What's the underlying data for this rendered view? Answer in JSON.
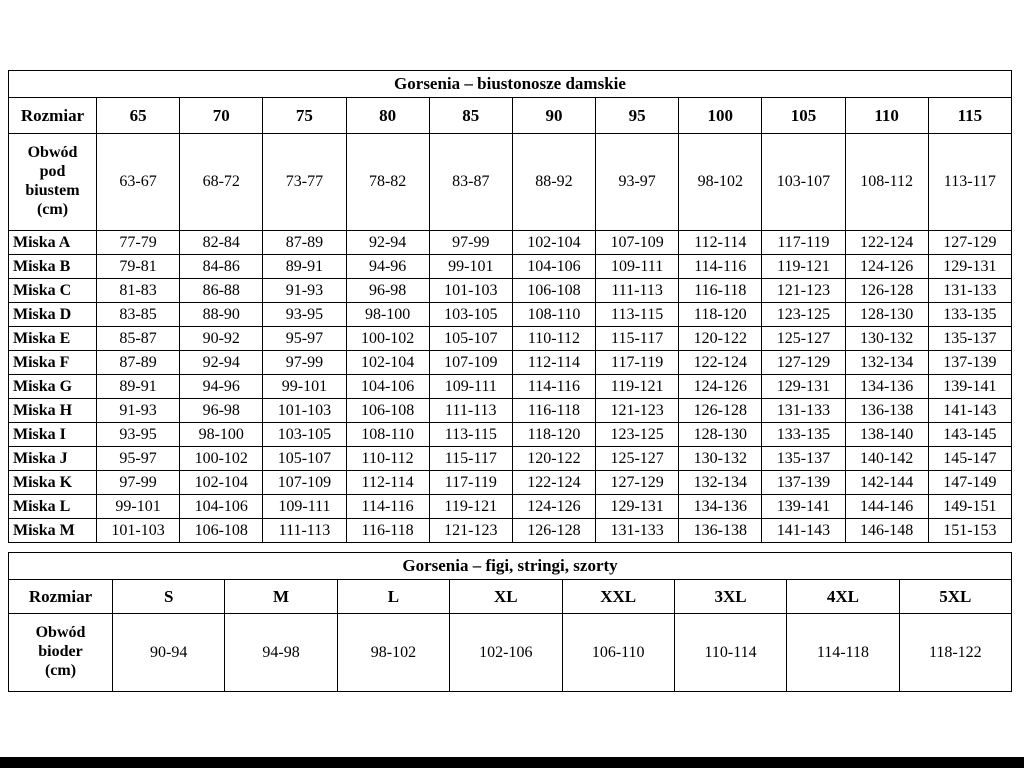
{
  "bras_table": {
    "title": "Gorsenia – biustonosze damskie",
    "header": [
      "Rozmiar",
      "65",
      "70",
      "75",
      "80",
      "85",
      "90",
      "95",
      "100",
      "105",
      "110",
      "115"
    ],
    "underbust": {
      "label": "Obwód pod biustem (cm)",
      "values": [
        "63-67",
        "68-72",
        "73-77",
        "78-82",
        "83-87",
        "88-92",
        "93-97",
        "98-102",
        "103-107",
        "108-112",
        "113-117"
      ]
    },
    "cup_rows": [
      {
        "label": "Miska A",
        "values": [
          "77-79",
          "82-84",
          "87-89",
          "92-94",
          "97-99",
          "102-104",
          "107-109",
          "112-114",
          "117-119",
          "122-124",
          "127-129"
        ]
      },
      {
        "label": "Miska B",
        "values": [
          "79-81",
          "84-86",
          "89-91",
          "94-96",
          "99-101",
          "104-106",
          "109-111",
          "114-116",
          "119-121",
          "124-126",
          "129-131"
        ]
      },
      {
        "label": "Miska C",
        "values": [
          "81-83",
          "86-88",
          "91-93",
          "96-98",
          "101-103",
          "106-108",
          "111-113",
          "116-118",
          "121-123",
          "126-128",
          "131-133"
        ]
      },
      {
        "label": "Miska D",
        "values": [
          "83-85",
          "88-90",
          "93-95",
          "98-100",
          "103-105",
          "108-110",
          "113-115",
          "118-120",
          "123-125",
          "128-130",
          "133-135"
        ]
      },
      {
        "label": "Miska E",
        "values": [
          "85-87",
          "90-92",
          "95-97",
          "100-102",
          "105-107",
          "110-112",
          "115-117",
          "120-122",
          "125-127",
          "130-132",
          "135-137"
        ]
      },
      {
        "label": "Miska F",
        "values": [
          "87-89",
          "92-94",
          "97-99",
          "102-104",
          "107-109",
          "112-114",
          "117-119",
          "122-124",
          "127-129",
          "132-134",
          "137-139"
        ]
      },
      {
        "label": "Miska G",
        "values": [
          "89-91",
          "94-96",
          "99-101",
          "104-106",
          "109-111",
          "114-116",
          "119-121",
          "124-126",
          "129-131",
          "134-136",
          "139-141"
        ]
      },
      {
        "label": "Miska H",
        "values": [
          "91-93",
          "96-98",
          "101-103",
          "106-108",
          "111-113",
          "116-118",
          "121-123",
          "126-128",
          "131-133",
          "136-138",
          "141-143"
        ]
      },
      {
        "label": "Miska I",
        "values": [
          "93-95",
          "98-100",
          "103-105",
          "108-110",
          "113-115",
          "118-120",
          "123-125",
          "128-130",
          "133-135",
          "138-140",
          "143-145"
        ]
      },
      {
        "label": "Miska J",
        "values": [
          "95-97",
          "100-102",
          "105-107",
          "110-112",
          "115-117",
          "120-122",
          "125-127",
          "130-132",
          "135-137",
          "140-142",
          "145-147"
        ]
      },
      {
        "label": "Miska K",
        "values": [
          "97-99",
          "102-104",
          "107-109",
          "112-114",
          "117-119",
          "122-124",
          "127-129",
          "132-134",
          "137-139",
          "142-144",
          "147-149"
        ]
      },
      {
        "label": "Miska L",
        "values": [
          "99-101",
          "104-106",
          "109-111",
          "114-116",
          "119-121",
          "124-126",
          "129-131",
          "134-136",
          "139-141",
          "144-146",
          "149-151"
        ]
      },
      {
        "label": "Miska M",
        "values": [
          "101-103",
          "106-108",
          "111-113",
          "116-118",
          "121-123",
          "126-128",
          "131-133",
          "136-138",
          "141-143",
          "146-148",
          "151-153"
        ]
      }
    ]
  },
  "panties_table": {
    "title": "Gorsenia – figi, stringi, szorty",
    "header": [
      "Rozmiar",
      "S",
      "M",
      "L",
      "XL",
      "XXL",
      "3XL",
      "4XL",
      "5XL"
    ],
    "hips": {
      "label": "Obwód bioder (cm)",
      "values": [
        "90-94",
        "94-98",
        "98-102",
        "102-106",
        "106-110",
        "110-114",
        "114-118",
        "118-122"
      ]
    }
  }
}
